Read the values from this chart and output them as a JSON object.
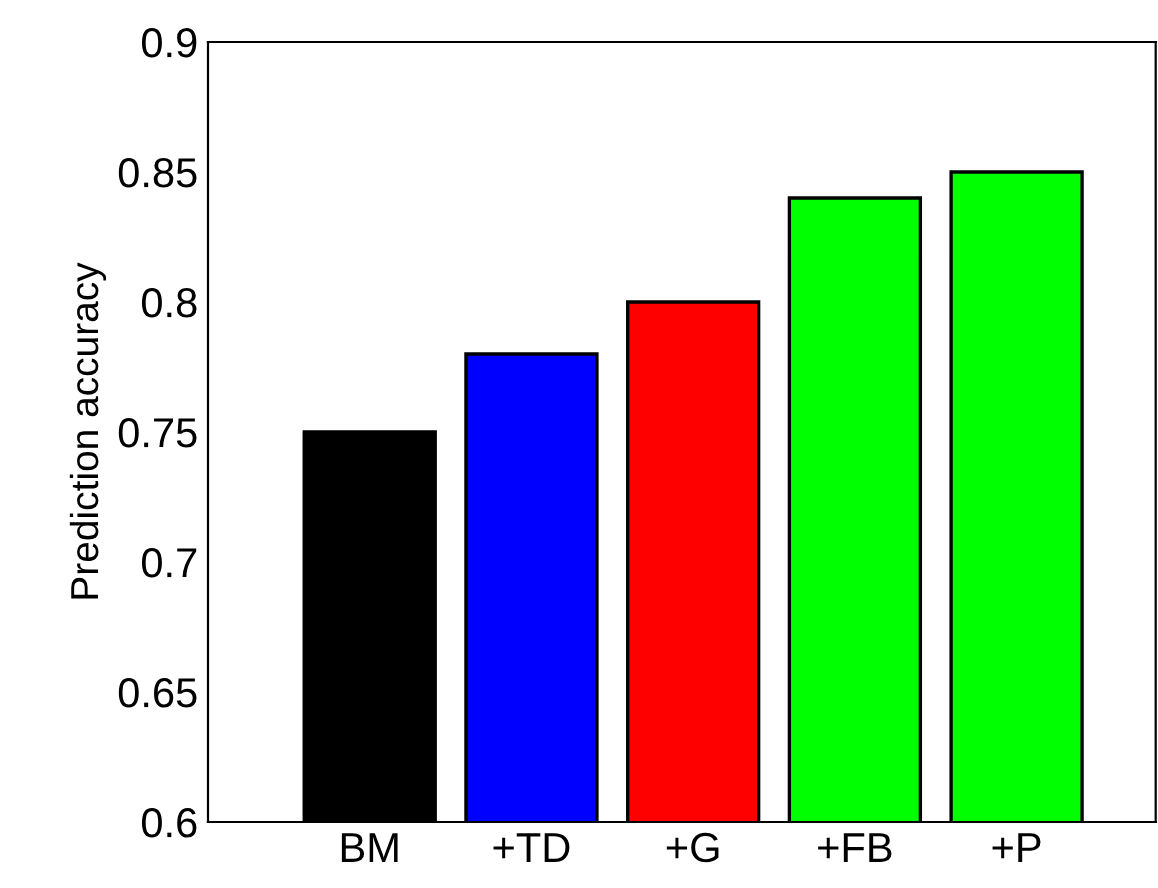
{
  "chart_data": {
    "type": "bar",
    "ylabel": "Prediction accuracy",
    "categories": [
      "BM",
      "+TD",
      "+G",
      "+FB",
      "+P"
    ],
    "values": [
      0.75,
      0.78,
      0.8,
      0.84,
      0.85
    ],
    "colors": [
      "#000000",
      "#0000ff",
      "#ff0000",
      "#00ff00",
      "#00ff00"
    ],
    "ylim": [
      0.6,
      0.9
    ],
    "yticks": [
      0.6,
      0.65,
      0.7,
      0.75,
      0.8,
      0.85,
      0.9
    ],
    "grid": false,
    "legend": false
  }
}
